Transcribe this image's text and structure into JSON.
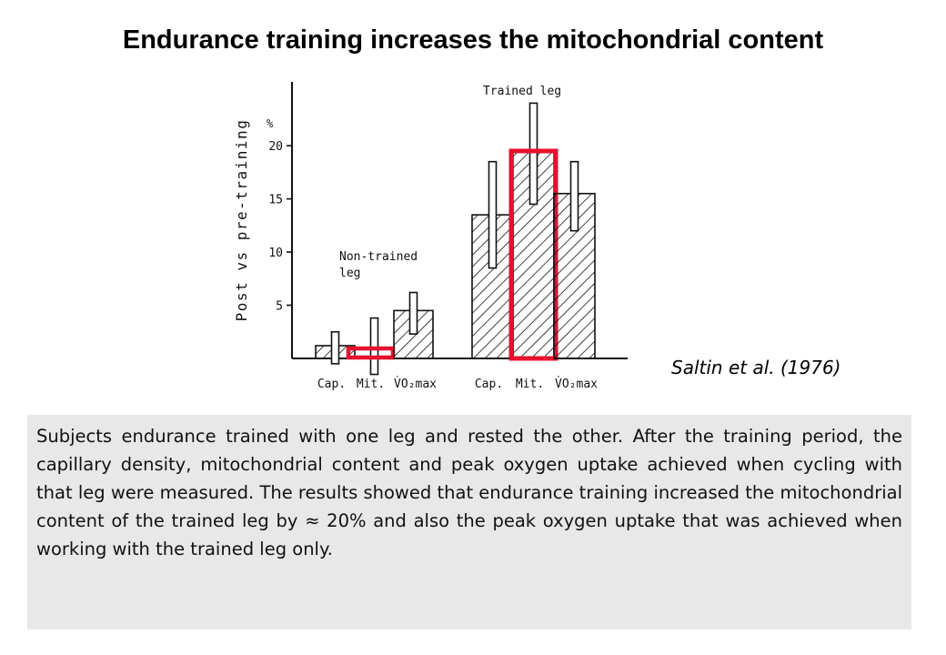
{
  "title": "Endurance training increases the mitochondrial content",
  "citation": "Saltin et al. (1976)",
  "caption": "Subjects endurance trained with one leg and rested the other. After the training period, the capillary density, mitochondrial content and peak oxygen uptake achieved when cycling with that leg were measured. The results showed that endurance training increased the mitochondrial content of the trained leg by ≈ 20% and also the peak oxygen uptake that was achieved when working with the trained leg only.",
  "colors": {
    "highlight": "#e8102c",
    "ink": "#111111",
    "caption_bg": "#e8e8e8"
  },
  "chart_data": {
    "type": "bar",
    "ylabel": "Post vs pre-training",
    "yunit": "%",
    "ylim": [
      0,
      26
    ],
    "yticks": [
      5,
      10,
      15,
      20
    ],
    "categories": [
      "Cap.",
      "Mit.",
      "V̇O₂max"
    ],
    "groups": [
      {
        "name": "Non-trained leg",
        "values": [
          1.2,
          0.2,
          4.5
        ],
        "error_high": [
          2.5,
          3.8,
          6.2
        ],
        "error_low": [
          -0.5,
          -1.5,
          2.3
        ]
      },
      {
        "name": "Trained leg",
        "values": [
          13.5,
          19.5,
          15.5
        ],
        "error_high": [
          18.5,
          24,
          18.5
        ],
        "error_low": [
          8.5,
          14.5,
          12
        ]
      }
    ],
    "highlighted": [
      "Mit."
    ],
    "grid": false,
    "legend": "none"
  }
}
